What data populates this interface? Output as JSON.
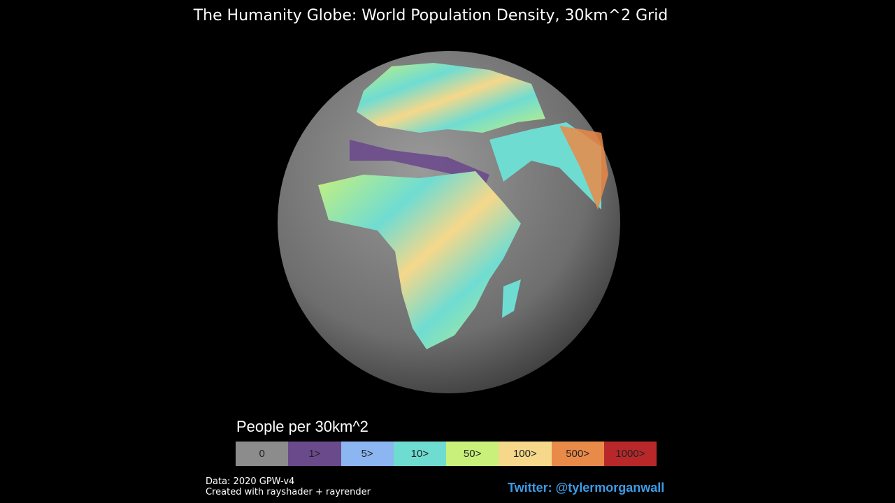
{
  "title": "The Humanity Globe: World Population Density, 30km^2 Grid",
  "legend": {
    "title": "People per 30km^2",
    "items": [
      {
        "label": "0",
        "color": "#8c8c8c"
      },
      {
        "label": "1>",
        "color": "#6b4a8c"
      },
      {
        "label": "5>",
        "color": "#8bb6f2"
      },
      {
        "label": "10>",
        "color": "#6fdcd2"
      },
      {
        "label": "50>",
        "color": "#c9f07a"
      },
      {
        "label": "100>",
        "color": "#f5d88a"
      },
      {
        "label": "500>",
        "color": "#ea8a48"
      },
      {
        "label": "1000>",
        "color": "#b8282a"
      }
    ]
  },
  "footer": {
    "source": "Data: 2020 GPW-v4",
    "credit": "Created with rayshader + rayrender",
    "twitter": "Twitter: @tylermorganwall"
  }
}
